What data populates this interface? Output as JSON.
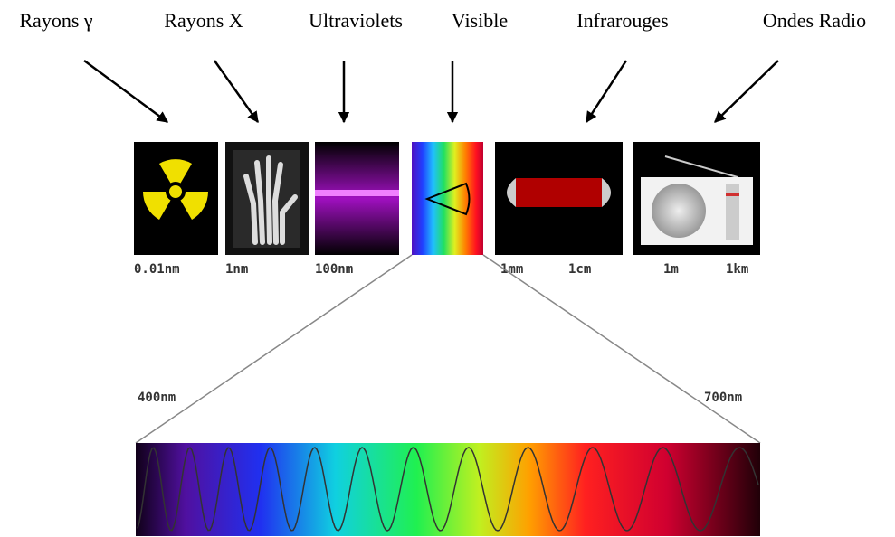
{
  "bands": [
    "Rayons γ",
    "Rayons X",
    "Ultraviolets",
    "Visible",
    "Infrarouges",
    "Ondes Radio"
  ],
  "scale": [
    "0.01nm",
    "1nm",
    "100nm",
    "1mm",
    "1cm",
    "1m",
    "1km"
  ],
  "visible_range": {
    "start": "400nm",
    "end": "700nm"
  }
}
